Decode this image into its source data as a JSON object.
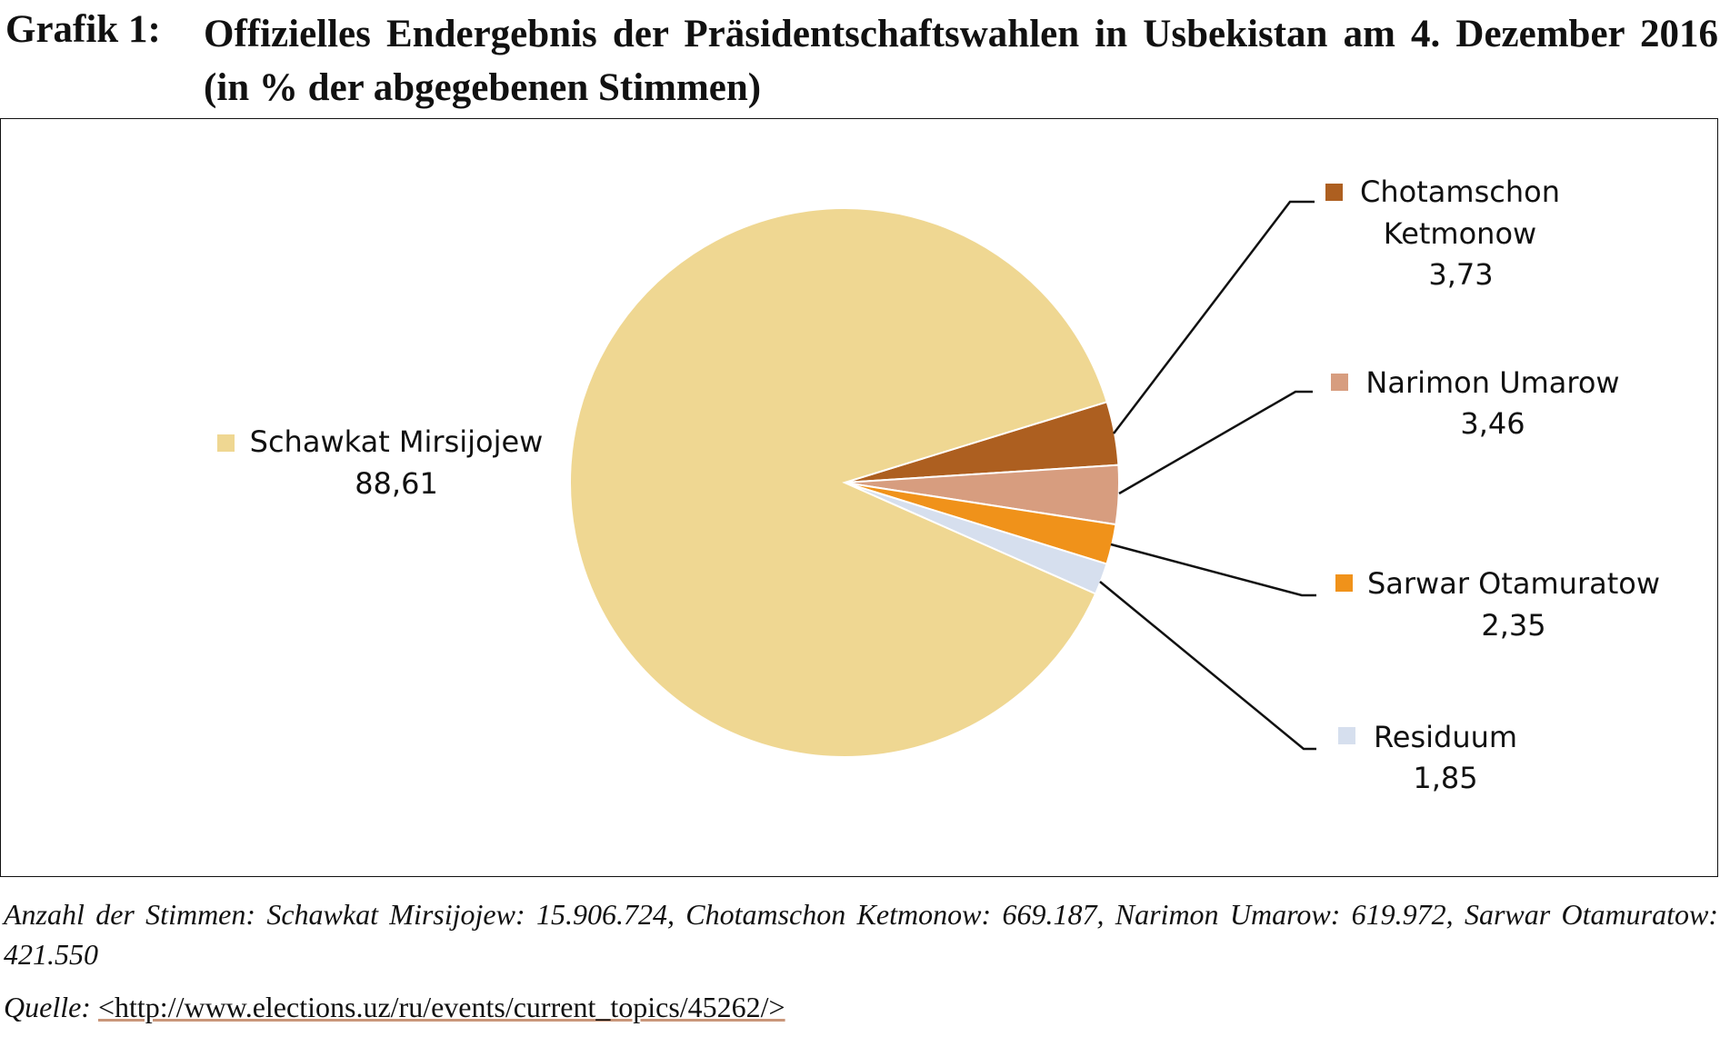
{
  "figure_label": "Grafik 1:",
  "chart_data": {
    "type": "pie",
    "title": "Offizielles Endergebnis der Präsidentschaftswahlen in Usbekistan am 4. Dezember 2016 (in % der abgegebenen Stimmen)",
    "slices": [
      {
        "name": "Chotamschon Ketmonow",
        "name_lines": [
          "Chotamschon",
          "Ketmonow"
        ],
        "value": 3.73,
        "value_label": "3,73",
        "color": "#AD5F20"
      },
      {
        "name": "Narimon Umarow",
        "name_lines": [
          "Narimon Umarow"
        ],
        "value": 3.46,
        "value_label": "3,46",
        "color": "#D79D7F"
      },
      {
        "name": "Sarwar Otamuratow",
        "name_lines": [
          "Sarwar Otamuratow"
        ],
        "value": 2.35,
        "value_label": "2,35",
        "color": "#F0921A"
      },
      {
        "name": "Residuum",
        "name_lines": [
          "Residuum"
        ],
        "value": 1.85,
        "value_label": "1,85",
        "color": "#D6DFEE"
      },
      {
        "name": "Schawkat Mirsijojew",
        "name_lines": [
          "Schawkat Mirsijojew"
        ],
        "value": 88.61,
        "value_label": "88,61",
        "color": "#EFD792"
      }
    ],
    "unit": "%"
  },
  "footnote": {
    "text": "Anzahl der Stimmen: Schawkat Mirsijojew: 15.906.724, Chotamschon Ketmonow: 669.187, Narimon Umarow: 619.972, Sarwar Otamuratow: 421.550",
    "source_label": "Quelle:",
    "source_link": "<http://www.elections.uz/ru/events/current_topics/45262/>"
  }
}
